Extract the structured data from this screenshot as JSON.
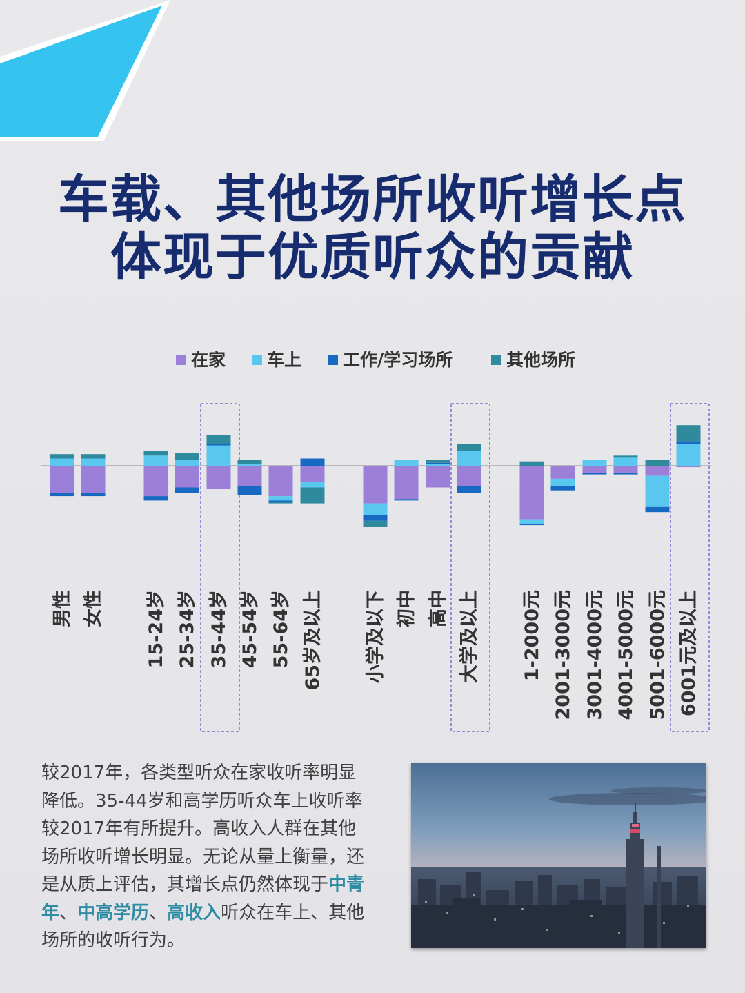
{
  "colors": {
    "accent_corner": "#33c2ee",
    "title": "#172c6e",
    "highlight_text": "#2e8ca3",
    "dashed_box": "#9b88dc"
  },
  "title": {
    "line1": "车载、其他场所收听增长点",
    "line2": "体现于优质听众的贡献"
  },
  "chart_data": {
    "type": "bar",
    "stacked": true,
    "diverging": true,
    "legend_position": "top",
    "grid": false,
    "categories": [
      "男性",
      "女性",
      "15-24岁",
      "25-34岁",
      "35-44岁",
      "45-54岁",
      "55-64岁",
      "65岁及以上",
      "小学及以下",
      "初中",
      "高中",
      "大学及以上",
      "1-2000元",
      "2001-3000元",
      "3001-4000元",
      "4001-5000元",
      "5001-6000元",
      "6001元及以上"
    ],
    "groups": [
      [
        0,
        1
      ],
      [
        2,
        3,
        4,
        5,
        6,
        7
      ],
      [
        8,
        9,
        10,
        11
      ],
      [
        12,
        13,
        14,
        15,
        16,
        17
      ]
    ],
    "highlighted_categories": [
      "35-44岁",
      "大学及以上",
      "6001元及以上"
    ],
    "series": [
      {
        "name": "在家",
        "color": "#9b7fd8",
        "values": [
          -1.9,
          -1.9,
          -2.1,
          -1.5,
          -1.6,
          -1.4,
          -2.1,
          -1.1,
          -2.6,
          -2.3,
          -1.5,
          -1.4,
          -3.7,
          -0.9,
          -0.5,
          -0.5,
          -0.7,
          -0.1
        ]
      },
      {
        "name": "车上",
        "color": "#5ac8ee",
        "values": [
          0.5,
          0.5,
          0.7,
          0.4,
          1.4,
          0.1,
          -0.3,
          -0.4,
          -0.8,
          0.4,
          0.1,
          1.0,
          -0.3,
          -0.5,
          0.4,
          0.6,
          -2.1,
          1.5
        ]
      },
      {
        "name": "工作/学习场所",
        "color": "#1769c2",
        "values": [
          -0.2,
          -0.2,
          -0.3,
          -0.4,
          0.1,
          -0.6,
          -0.1,
          0.5,
          -0.4,
          -0.1,
          0.1,
          -0.5,
          -0.1,
          -0.3,
          -0.1,
          -0.1,
          -0.4,
          0.2
        ]
      },
      {
        "name": "其他场所",
        "color": "#2f8a9e",
        "values": [
          0.3,
          0.3,
          0.3,
          0.5,
          0.6,
          0.3,
          -0.1,
          -1.1,
          -0.4,
          0.0,
          0.2,
          0.5,
          0.3,
          0.0,
          0.0,
          0.1,
          0.4,
          1.1
        ]
      }
    ]
  },
  "description": {
    "lines": [
      [
        {
          "t": "较2017年，各类型听众在家收听率明显"
        }
      ],
      [
        {
          "t": "降低。35-44岁和高学历听众车上收听率"
        }
      ],
      [
        {
          "t": "较2017年有所提升。高收入人群在其他"
        }
      ],
      [
        {
          "t": "场所收听增长明显。无论从量上衡量，还"
        }
      ],
      [
        {
          "t": "是从质上评估，其增长点仍然体现于"
        },
        {
          "t": "中青",
          "h": true
        }
      ],
      [
        {
          "t": "年",
          "h": true
        },
        {
          "t": "、"
        },
        {
          "t": "中高学历",
          "h": true
        },
        {
          "t": "、"
        },
        {
          "t": "高收入",
          "h": true
        },
        {
          "t": "听众在车上、其他"
        }
      ],
      [
        {
          "t": "场所的收听行为。"
        }
      ]
    ]
  }
}
